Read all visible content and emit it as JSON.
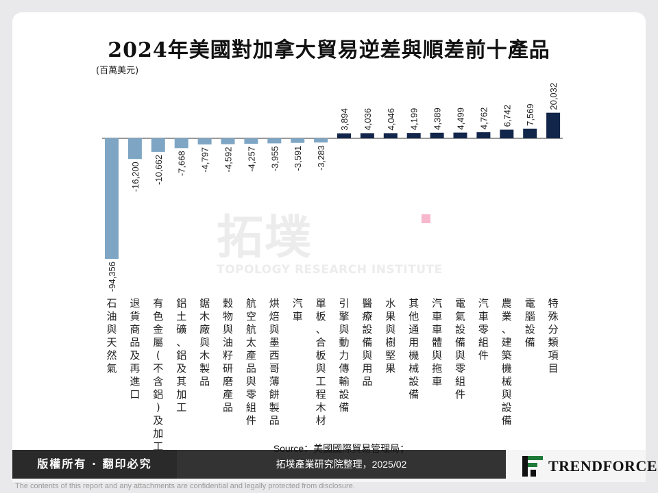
{
  "chart_data": {
    "type": "bar",
    "title": "2024年美國對加拿大貿易逆差與順差前十產品",
    "unit_label": "(百萬美元)",
    "categories": [
      "石油與天然氣",
      "退貨商品及再進口",
      "有色金屬(不含鋁)及加工",
      "鋁土礦、鋁及其加工",
      "鋸木廠與木製品",
      "穀物與油籽研磨產品",
      "航空航太產品與零組件",
      "烘焙與墨西哥薄餅製品",
      "汽車",
      "單板、合板與工程木材",
      "引擎與動力傳輸設備",
      "醫療設備與用品",
      "水果與樹堅果",
      "其他通用機械設備",
      "汽車車體與拖車",
      "電氣設備與零組件",
      "汽車零組件",
      "農業、建築機械與設備",
      "電腦設備",
      "特殊分類項目"
    ],
    "values": [
      -94356,
      -16200,
      -10662,
      -7668,
      -4797,
      -4592,
      -4257,
      -3955,
      -3591,
      -3283,
      3894,
      4036,
      4046,
      4199,
      4389,
      4499,
      4762,
      6742,
      7569,
      20032
    ],
    "value_labels": [
      "-94,356",
      "-16,200",
      "-10,662",
      "-7,668",
      "-4,797",
      "-4,592",
      "-4,257",
      "-3,955",
      "-3,591",
      "-3,283",
      "3,894",
      "4,036",
      "4,046",
      "4,199",
      "4,389",
      "4,499",
      "4,762",
      "6,742",
      "7,569",
      "20,032"
    ],
    "colors": {
      "negative": "#7ea6c4",
      "positive": "#12254a"
    },
    "grid": false
  },
  "watermark": {
    "cn": "拓墣",
    "en": "TOPOLOGY RESEARCH INSTITUTE"
  },
  "footer": {
    "copyright": "版權所有 · 翻印必究",
    "source_line1": "Source：美國國際貿易管理局；",
    "source_line2": "拓墣產業研究院整理，2025/02",
    "logo": "TRENDFORCE",
    "disclaimer": "The contents of this report and any attachments are confidential and legally protected from disclosure."
  }
}
